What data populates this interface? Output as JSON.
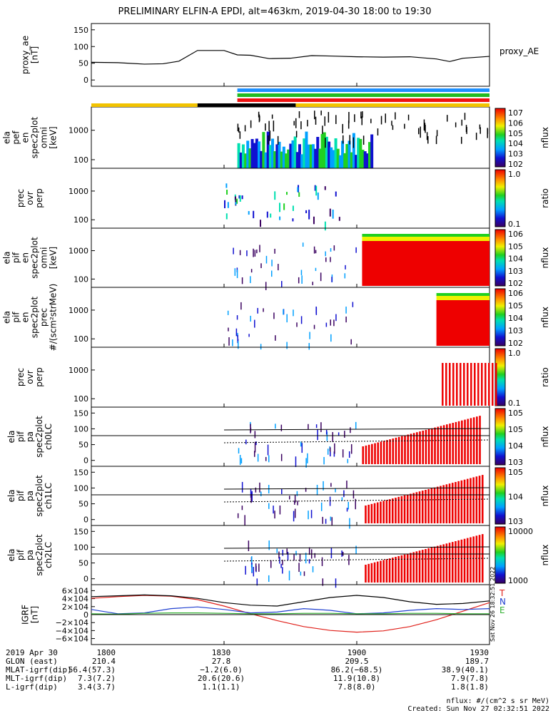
{
  "title": "PRELIMINARY ELFIN-A EPDI, alt=463km, 2019-04-30 18:00 to 19:30",
  "chart_data": [
    {
      "type": "line",
      "ylabel": "proxy_ae [nT]",
      "legend": "proxy_AE",
      "ylim": [
        -10,
        160
      ],
      "yticks": [
        "150",
        "100",
        "50",
        "0"
      ],
      "x": [
        18.0,
        18.1,
        18.2,
        18.27,
        18.33,
        18.4,
        18.5,
        18.55,
        18.6,
        18.67,
        18.75,
        18.83,
        18.9,
        19.0,
        19.1,
        19.2,
        19.3,
        19.35,
        19.4,
        19.5
      ],
      "series": [
        {
          "name": "proxy_AE",
          "values": [
            55,
            54,
            50,
            51,
            58,
            87,
            87,
            75,
            74,
            65,
            66,
            73,
            72,
            70,
            69,
            70,
            64,
            57,
            66,
            71
          ]
        }
      ]
    },
    {
      "type": "heatmap",
      "ylabel": "ela pef en spec2plot omni [keV]",
      "yticks": [
        "1000",
        "100"
      ],
      "colorbar": {
        "label": "nflux",
        "ticks": [
          "10^7",
          "10^6",
          "10^5",
          "10^4",
          "10^3",
          "10^2"
        ]
      }
    },
    {
      "type": "heatmap",
      "ylabel": "prec ovr perp",
      "yticks": [
        "1000",
        "100"
      ],
      "colorbar": {
        "label": "ratio",
        "ticks": [
          "1.0",
          "0.1"
        ]
      }
    },
    {
      "type": "heatmap",
      "ylabel": "ela pif en spec2plot omni [keV]",
      "yticks": [
        "1000",
        "100"
      ],
      "colorbar": {
        "label": "nflux",
        "ticks": [
          "10^6",
          "10^5",
          "10^4",
          "10^3",
          "10^2"
        ]
      }
    },
    {
      "type": "heatmap",
      "ylabel": "ela pif en spec2plot prec #/(scm²strMeV)",
      "yticks": [
        "1000",
        "100"
      ],
      "colorbar": {
        "label": "nflux",
        "ticks": [
          "10^6",
          "10^5",
          "10^4",
          "10^3",
          "10^2"
        ]
      }
    },
    {
      "type": "heatmap",
      "ylabel": "prec ovr perp",
      "yticks": [
        "1000",
        "100"
      ],
      "colorbar": {
        "label": "ratio",
        "ticks": [
          "1.0",
          "0.1"
        ]
      }
    },
    {
      "type": "heatmap",
      "ylabel": "ela pif pa spec2plot ch0LC",
      "yticks": [
        "150",
        "100",
        "50",
        "0"
      ],
      "colorbar": {
        "label": "nflux",
        "ticks": [
          "10^5",
          "10^5",
          "10^4",
          "10^3"
        ]
      }
    },
    {
      "type": "heatmap",
      "ylabel": "ela pif pa spec2plot ch1LC",
      "yticks": [
        "150",
        "100",
        "50",
        "0"
      ],
      "colorbar": {
        "label": "nflux",
        "ticks": [
          "10^5",
          "10^4",
          "10^3"
        ]
      }
    },
    {
      "type": "heatmap",
      "ylabel": "ela pif pa spec2plot ch2LC",
      "yticks": [
        "150",
        "100",
        "50",
        "0"
      ],
      "colorbar": {
        "label": "nflux",
        "ticks": [
          "10000",
          "1000"
        ]
      }
    },
    {
      "type": "line",
      "ylabel": "IGRF [nT]",
      "ylim": [
        -70000,
        70000
      ],
      "yticks": [
        "6×10^4",
        "4×10^4",
        "2×10^4",
        "0",
        "−2×10^4",
        "−4×10^4",
        "−6×10^4"
      ],
      "x": [
        18.0,
        18.1,
        18.2,
        18.3,
        18.4,
        18.5,
        18.6,
        18.7,
        18.8,
        18.9,
        19.0,
        19.1,
        19.2,
        19.3,
        19.4,
        19.5
      ],
      "series": [
        {
          "name": "T",
          "color": "#e0201a",
          "values": [
            38000,
            42000,
            45000,
            43000,
            35000,
            20000,
            2000,
            -14000,
            -28000,
            -37000,
            -41000,
            -38000,
            -28000,
            -12000,
            8000,
            28000
          ]
        },
        {
          "name": "N",
          "color": "#2040d0",
          "values": [
            12000,
            2000,
            4000,
            14000,
            18000,
            12000,
            4000,
            6000,
            14000,
            10000,
            2000,
            4000,
            10000,
            14000,
            12000,
            14000
          ]
        },
        {
          "name": "E",
          "color": "#30b030",
          "values": [
            2000,
            1000,
            3000,
            4000,
            4000,
            3000,
            2000,
            2000,
            3000,
            3000,
            2000,
            2000,
            3000,
            3000,
            2000,
            2000
          ]
        },
        {
          "name": "",
          "color": "#000000",
          "values": [
            42000,
            44000,
            46000,
            44000,
            38000,
            28000,
            22000,
            20000,
            30000,
            40000,
            45000,
            40000,
            30000,
            24000,
            26000,
            32000
          ]
        }
      ]
    }
  ],
  "xaxis": {
    "ticks": [
      "1800",
      "1830",
      "1900",
      "1930"
    ]
  },
  "footer": {
    "rows": [
      {
        "label": "2019 Apr 30",
        "values": [
          "1800",
          "1830",
          "1900",
          "1930"
        ]
      },
      {
        "label": "GLON (east)",
        "values": [
          "210.4",
          "27.8",
          "209.5",
          "189.7"
        ]
      },
      {
        "label": "MLAT-igrf(dip)",
        "values": [
          "56.4(57.3)",
          "−1.2(6.0)",
          "86.2(−68.5)",
          "38.9(40.1)"
        ]
      },
      {
        "label": "MLT-igrf(dip)",
        "values": [
          "7.3(7.2)",
          "20.6(20.6)",
          "11.9(10.8)",
          "7.9(7.8)"
        ]
      },
      {
        "label": "L-igrf(dip)",
        "values": [
          "3.4(3.7)",
          "1.1(1.1)",
          "7.8(8.0)",
          "1.8(1.8)"
        ]
      }
    ],
    "units": "nflux: #/(cm^2 s sr MeV)",
    "created": "Created: Sun Nov 27 02:32:51 2022",
    "side_stamp": "Sat Nov 26 18:32:51 2022"
  },
  "colors": {
    "blue_bar": "#1e90ff",
    "green_bar": "#22bb22",
    "red_bar": "#ee1111",
    "yellow_bar": "#f2c300",
    "black_bar": "#000000"
  }
}
